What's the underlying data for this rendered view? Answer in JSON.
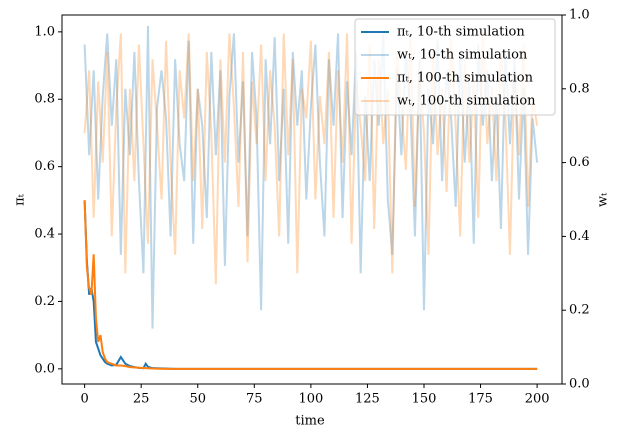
{
  "chart_data": {
    "type": "line",
    "xlabel": "time",
    "ylabel": "πₜ",
    "y2label": "wₜ",
    "xlim": [
      -10,
      211
    ],
    "ylim": [
      -0.045,
      1.05
    ],
    "y2lim": [
      0,
      1
    ],
    "xticks": [
      0,
      25,
      50,
      75,
      100,
      125,
      150,
      175,
      200
    ],
    "yticks": [
      {
        "value": 0,
        "label": "0.0"
      },
      0.2,
      0.4,
      0.6,
      0.8,
      {
        "value": 1,
        "label": "1.0"
      }
    ],
    "y2ticks": [
      {
        "value": 0,
        "label": "0.0"
      },
      0.2,
      0.4,
      0.6,
      0.8,
      {
        "value": 1,
        "label": "1.0"
      }
    ],
    "legend": "upper right",
    "x": [
      0,
      2,
      4,
      6,
      8,
      10,
      12,
      14,
      16,
      18,
      20,
      22,
      24,
      26,
      28,
      30,
      32,
      34,
      36,
      38,
      40,
      42,
      44,
      46,
      48,
      50,
      52,
      54,
      56,
      58,
      60,
      62,
      64,
      66,
      68,
      70,
      72,
      74,
      76,
      78,
      80,
      82,
      84,
      86,
      88,
      90,
      92,
      94,
      96,
      98,
      100,
      102,
      104,
      106,
      108,
      110,
      112,
      114,
      116,
      118,
      120,
      122,
      124,
      126,
      128,
      130,
      132,
      134,
      136,
      138,
      140,
      142,
      144,
      146,
      148,
      150,
      152,
      154,
      156,
      158,
      160,
      162,
      164,
      166,
      168,
      170,
      172,
      174,
      176,
      178,
      180,
      182,
      184,
      186,
      188,
      190,
      192,
      194,
      196,
      198,
      200
    ],
    "series": [
      {
        "name": "πₜ, 10-th simulation",
        "color": "#1f77b4",
        "opacity": 1,
        "x": [
          0,
          1,
          2,
          3,
          4,
          5,
          6,
          7,
          8,
          9,
          10,
          12,
          14,
          16,
          18,
          20,
          22,
          24,
          26,
          27,
          28,
          30,
          35,
          40,
          200
        ],
        "values": [
          0.5,
          0.32,
          0.22,
          0.24,
          0.2,
          0.08,
          0.06,
          0.04,
          0.03,
          0.02,
          0.015,
          0.01,
          0.012,
          0.035,
          0.015,
          0.008,
          0.005,
          0.003,
          0.002,
          0.015,
          0.006,
          0.002,
          0.001,
          0,
          0
        ]
      },
      {
        "name": "wₜ, 10-th simulation",
        "color": "#1f77b4",
        "opacity": 0.3,
        "axis": "y2",
        "values": [
          0.92,
          0.62,
          0.85,
          0.5,
          0.78,
          0.95,
          0.7,
          0.88,
          0.35,
          0.8,
          0.62,
          0.9,
          0.55,
          0.3,
          0.97,
          0.15,
          0.75,
          0.85,
          0.72,
          0.4,
          0.88,
          0.65,
          0.55,
          0.93,
          0.38,
          0.8,
          0.7,
          0.45,
          0.9,
          0.62,
          0.85,
          0.32,
          0.78,
          0.95,
          0.6,
          0.82,
          0.4,
          0.9,
          0.72,
          0.2,
          0.88,
          0.65,
          0.94,
          0.55,
          0.8,
          0.38,
          0.9,
          0.7,
          0.85,
          0.5,
          0.75,
          0.92,
          0.6,
          0.4,
          0.88,
          0.7,
          0.95,
          0.45,
          0.82,
          0.62,
          0.9,
          0.3,
          0.78,
          0.55,
          0.88,
          0.7,
          0.95,
          0.5,
          0.35,
          0.85,
          0.62,
          0.9,
          0.75,
          0.4,
          0.88,
          0.2,
          0.8,
          0.65,
          0.93,
          0.55,
          0.85,
          0.72,
          0.48,
          0.9,
          0.6,
          0.82,
          0.38,
          0.92,
          0.7,
          0.85,
          0.55,
          0.78,
          0.42,
          0.9,
          0.65,
          0.88,
          0.5,
          0.8,
          0.35,
          0.72,
          0.6
        ]
      },
      {
        "name": "πₜ, 100-th simulation",
        "color": "#ff7f0e",
        "opacity": 1,
        "x": [
          0,
          1,
          2,
          3,
          4,
          5,
          6,
          7,
          8,
          9,
          10,
          12,
          14,
          16,
          18,
          20,
          25,
          30,
          35,
          200
        ],
        "values": [
          0.5,
          0.3,
          0.24,
          0.22,
          0.34,
          0.15,
          0.08,
          0.1,
          0.05,
          0.03,
          0.02,
          0.015,
          0.01,
          0.01,
          0.008,
          0.005,
          0.003,
          0.001,
          0,
          0
        ]
      },
      {
        "name": "wₜ, 100-th simulation",
        "color": "#ff7f0e",
        "opacity": 0.3,
        "axis": "y2",
        "values": [
          0.68,
          0.85,
          0.45,
          0.82,
          0.6,
          0.9,
          0.4,
          0.75,
          0.95,
          0.3,
          0.8,
          0.55,
          0.92,
          0.65,
          0.38,
          0.88,
          0.7,
          0.5,
          0.93,
          0.6,
          0.35,
          0.85,
          0.72,
          0.95,
          0.55,
          0.8,
          0.42,
          0.9,
          0.68,
          0.27,
          0.88,
          0.6,
          0.95,
          0.75,
          0.48,
          0.9,
          0.33,
          0.82,
          0.65,
          0.92,
          0.55,
          0.85,
          0.7,
          0.4,
          0.95,
          0.62,
          0.88,
          0.3,
          0.8,
          0.72,
          0.93,
          0.5,
          0.78,
          0.65,
          0.9,
          0.45,
          0.85,
          0.6,
          0.95,
          0.38,
          0.82,
          0.7,
          0.55,
          0.92,
          0.42,
          0.88,
          0.65,
          0.8,
          0.3,
          0.9,
          0.75,
          0.58,
          0.95,
          0.48,
          0.85,
          0.68,
          0.35,
          0.9,
          0.62,
          0.8,
          0.52,
          0.93,
          0.7,
          0.4,
          0.88,
          0.6,
          0.82,
          0.45,
          0.95,
          0.65,
          0.8,
          0.55,
          0.9,
          0.72,
          0.35,
          0.85,
          0.62,
          0.92,
          0.48,
          0.78,
          0.7
        ]
      }
    ]
  }
}
